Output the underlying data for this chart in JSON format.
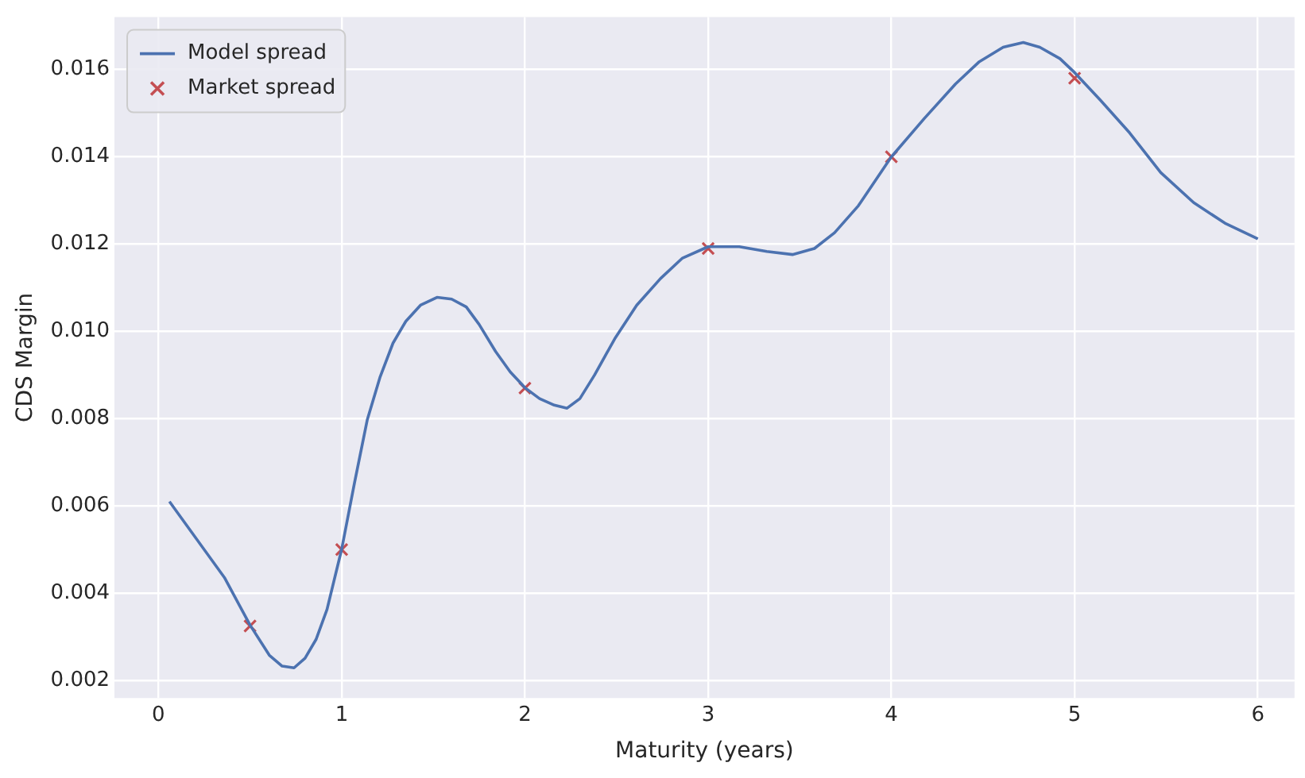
{
  "chart_data": {
    "type": "line",
    "xlabel": "Maturity (years)",
    "ylabel": "CDS Margin",
    "xlim": [
      -0.24,
      6.2
    ],
    "xticks": [
      0,
      1,
      2,
      3,
      4,
      5,
      6
    ],
    "ylim": [
      0.0016,
      0.0172
    ],
    "yticks": [
      0.002,
      0.004,
      0.006,
      0.008,
      {
        "value": 0.01,
        "label": "0.010"
      },
      0.012,
      0.014,
      0.016
    ],
    "grid": true,
    "legend": "top left",
    "series": [
      {
        "name": "Model spread",
        "color": "#4c72b0",
        "marker": "none",
        "x": [
          0.06,
          0.36,
          0.5,
          0.605,
          0.675,
          0.74,
          0.8,
          0.86,
          0.92,
          1.0,
          1.07,
          1.14,
          1.21,
          1.28,
          1.35,
          1.43,
          1.52,
          1.6,
          1.68,
          1.75,
          1.84,
          1.92,
          2.0,
          2.08,
          2.16,
          2.23,
          2.3,
          2.38,
          2.49,
          2.61,
          2.74,
          2.86,
          3.0,
          3.17,
          3.32,
          3.46,
          3.58,
          3.69,
          3.82,
          4.0,
          4.18,
          4.35,
          4.48,
          4.61,
          4.72,
          4.81,
          4.92,
          5.0,
          5.14,
          5.3,
          5.47,
          5.65,
          5.82,
          6.0
        ],
        "values": [
          0.0061,
          0.00436,
          0.00327,
          0.00258,
          0.00233,
          0.00229,
          0.00251,
          0.00294,
          0.00363,
          0.00501,
          0.00653,
          0.00798,
          0.00896,
          0.00973,
          0.01023,
          0.0106,
          0.01078,
          0.01074,
          0.01056,
          0.01016,
          0.00954,
          0.00907,
          0.00871,
          0.00846,
          0.00831,
          0.00824,
          0.00846,
          0.009,
          0.00983,
          0.0106,
          0.01121,
          0.01168,
          0.01194,
          0.01194,
          0.01183,
          0.01176,
          0.0119,
          0.01226,
          0.01288,
          0.014,
          0.01488,
          0.01567,
          0.01618,
          0.01651,
          0.01662,
          0.01651,
          0.01625,
          0.01593,
          0.0153,
          0.01455,
          0.01364,
          0.01295,
          0.01248,
          0.01212
        ]
      },
      {
        "type": "scatter",
        "name": "Market spread",
        "color": "#c44e52",
        "marker": "cross",
        "x": [
          0.5,
          1,
          2,
          3,
          4,
          5
        ],
        "values": [
          0.00325,
          0.005,
          0.0087,
          0.0119,
          0.014,
          0.0158
        ]
      }
    ]
  }
}
